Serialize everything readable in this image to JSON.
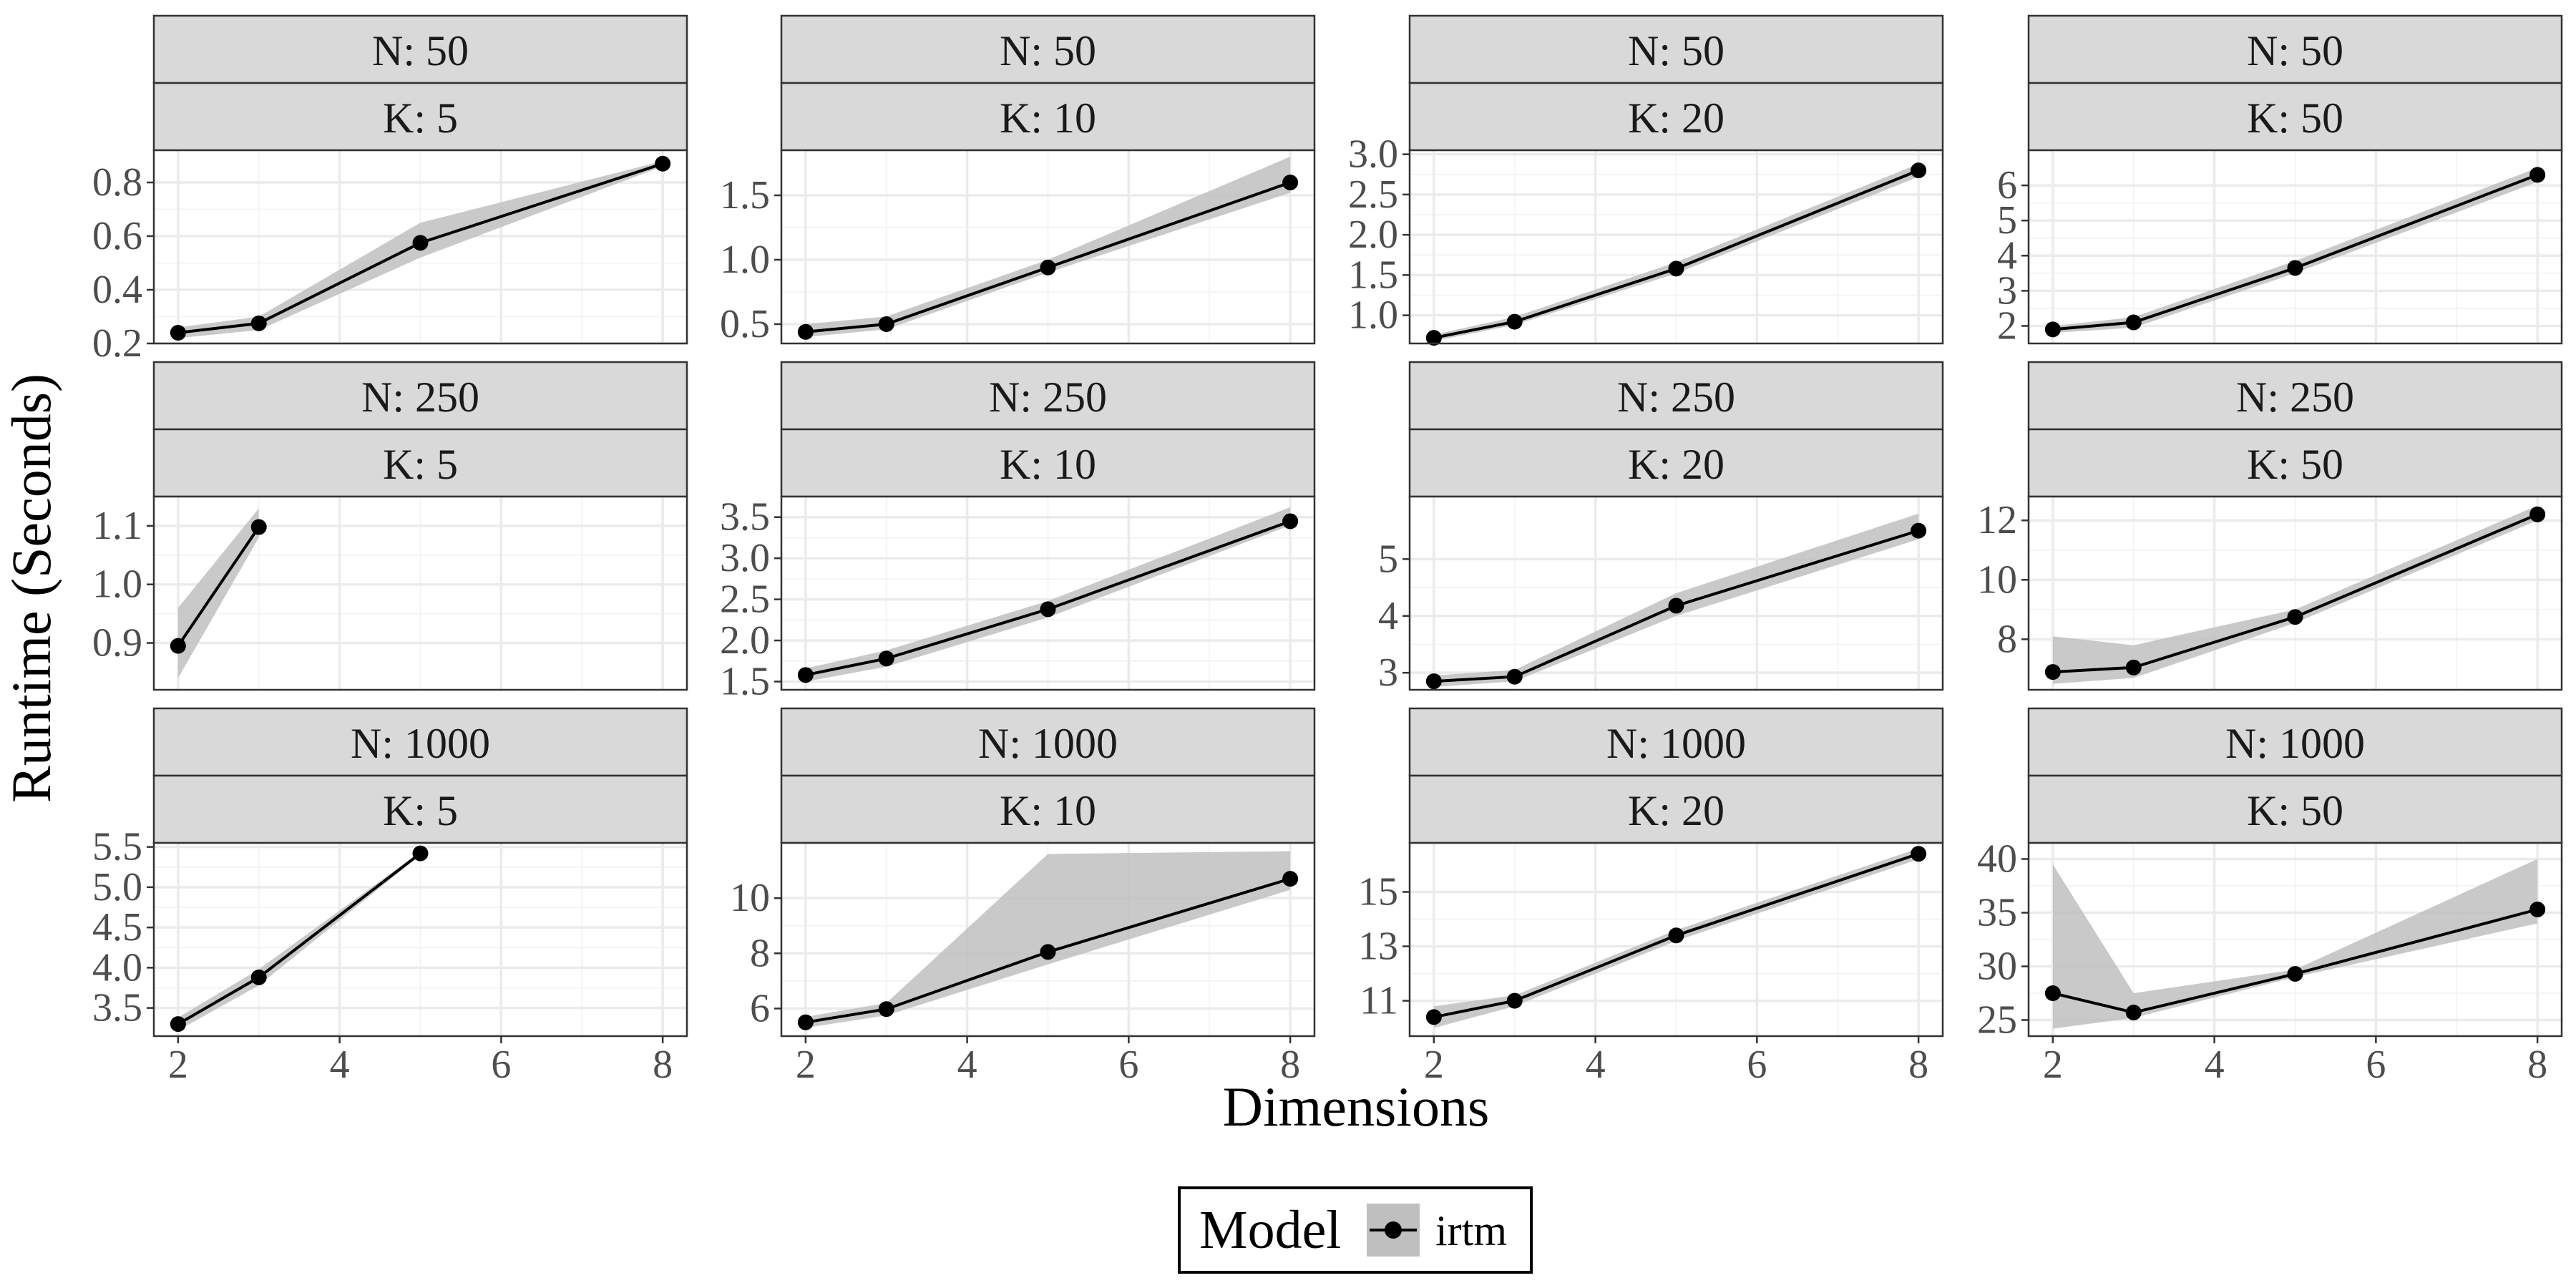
{
  "figure": {
    "ylabel": "Runtime (Seconds)",
    "xlabel": "Dimensions",
    "legend": {
      "title": "Model",
      "position": "bottom",
      "items": [
        "irtm"
      ]
    }
  },
  "colors": {
    "line": "#000000",
    "point": "#000000",
    "ribbon": "#bfbfbf",
    "strip_fill": "#d9d9d9",
    "strip_border": "#333333",
    "panel_border": "#333333",
    "grid_major": "#ebebeb",
    "grid_minor": "#f4f4f4",
    "tick_text": "#4d4d4d"
  },
  "chart_data": {
    "type": "line",
    "grid": true,
    "facet_rows": [
      "N: 50",
      "N: 250",
      "N: 1000"
    ],
    "facet_cols": [
      "K: 5",
      "K: 10",
      "K: 20",
      "K: 50"
    ],
    "xlim": [
      1.7,
      8.3
    ],
    "xticks": [
      2,
      4,
      6,
      8
    ],
    "xtick_labels": [
      "2",
      "4",
      "6",
      "8"
    ],
    "series_name": "irtm",
    "panels": [
      {
        "n": "N: 50",
        "k": "K: 5",
        "ylim": [
          0.2,
          0.92
        ],
        "yticks": [
          0.2,
          0.4,
          0.6,
          0.8
        ],
        "ytick_labels": [
          "0.2",
          "0.4",
          "0.6",
          "0.8"
        ],
        "x": [
          2,
          3,
          5,
          8
        ],
        "y": [
          0.24,
          0.275,
          0.575,
          0.87
        ],
        "lower": [
          0.22,
          0.25,
          0.52,
          0.86
        ],
        "upper": [
          0.26,
          0.3,
          0.65,
          0.88
        ]
      },
      {
        "n": "N: 50",
        "k": "K: 10",
        "ylim": [
          0.35,
          1.85
        ],
        "yticks": [
          0.5,
          1.0,
          1.5
        ],
        "ytick_labels": [
          "0.5",
          "1.0",
          "1.5"
        ],
        "x": [
          2,
          3,
          5,
          8
        ],
        "y": [
          0.44,
          0.5,
          0.94,
          1.6
        ],
        "lower": [
          0.4,
          0.46,
          0.9,
          1.52
        ],
        "upper": [
          0.5,
          0.56,
          1.0,
          1.8
        ]
      },
      {
        "n": "N: 50",
        "k": "K: 20",
        "ylim": [
          0.65,
          3.05
        ],
        "yticks": [
          1.0,
          1.5,
          2.0,
          2.5,
          3.0
        ],
        "ytick_labels": [
          "1.0",
          "1.5",
          "2.0",
          "2.5",
          "3.0"
        ],
        "x": [
          2,
          3,
          5,
          8
        ],
        "y": [
          0.72,
          0.92,
          1.58,
          2.8
        ],
        "lower": [
          0.68,
          0.88,
          1.52,
          2.72
        ],
        "upper": [
          0.76,
          0.98,
          1.66,
          2.88
        ]
      },
      {
        "n": "N: 50",
        "k": "K: 50",
        "ylim": [
          1.5,
          7.0
        ],
        "yticks": [
          2,
          3,
          4,
          5,
          6
        ],
        "ytick_labels": [
          "2",
          "3",
          "4",
          "5",
          "6"
        ],
        "x": [
          2,
          3,
          5,
          8
        ],
        "y": [
          1.9,
          2.1,
          3.65,
          6.3
        ],
        "lower": [
          1.8,
          1.95,
          3.5,
          6.1
        ],
        "upper": [
          2.0,
          2.25,
          3.85,
          6.5
        ]
      },
      {
        "n": "N: 250",
        "k": "K: 5",
        "ylim": [
          0.82,
          1.15
        ],
        "yticks": [
          0.9,
          1.0,
          1.1
        ],
        "ytick_labels": [
          "0.9",
          "1.0",
          "1.1"
        ],
        "x": [
          2,
          3
        ],
        "y": [
          0.895,
          1.098
        ],
        "lower": [
          0.84,
          1.08
        ],
        "upper": [
          0.96,
          1.13
        ]
      },
      {
        "n": "N: 250",
        "k": "K: 10",
        "ylim": [
          1.4,
          3.75
        ],
        "yticks": [
          1.5,
          2.0,
          2.5,
          3.0,
          3.5
        ],
        "ytick_labels": [
          "1.5",
          "2.0",
          "2.5",
          "3.0",
          "3.5"
        ],
        "x": [
          2,
          3,
          5,
          8
        ],
        "y": [
          1.58,
          1.78,
          2.38,
          3.45
        ],
        "lower": [
          1.5,
          1.68,
          2.28,
          3.4
        ],
        "upper": [
          1.66,
          1.88,
          2.48,
          3.62
        ]
      },
      {
        "n": "N: 250",
        "k": "K: 20",
        "ylim": [
          2.7,
          6.1
        ],
        "yticks": [
          3,
          4,
          5
        ],
        "ytick_labels": [
          "3",
          "4",
          "5"
        ],
        "x": [
          2,
          3,
          5,
          8
        ],
        "y": [
          2.85,
          2.93,
          4.18,
          5.5
        ],
        "lower": [
          2.75,
          2.85,
          4.0,
          5.35
        ],
        "upper": [
          2.95,
          3.05,
          4.4,
          5.8
        ]
      },
      {
        "n": "N: 250",
        "k": "K: 50",
        "ylim": [
          6.3,
          12.8
        ],
        "yticks": [
          8,
          10,
          12
        ],
        "ytick_labels": [
          "8",
          "10",
          "12"
        ],
        "x": [
          2,
          3,
          5,
          8
        ],
        "y": [
          6.9,
          7.05,
          8.75,
          12.2
        ],
        "lower": [
          6.5,
          6.7,
          8.55,
          12.0
        ],
        "upper": [
          8.1,
          7.8,
          9.0,
          12.5
        ]
      },
      {
        "n": "N: 1000",
        "k": "K: 5",
        "ylim": [
          3.15,
          5.55
        ],
        "yticks": [
          3.5,
          4.0,
          4.5,
          5.0,
          5.5
        ],
        "ytick_labels": [
          "3.5",
          "4.0",
          "4.5",
          "5.0",
          "5.5"
        ],
        "x": [
          2,
          3,
          5
        ],
        "y": [
          3.3,
          3.88,
          5.42
        ],
        "lower": [
          3.22,
          3.78,
          5.4
        ],
        "upper": [
          3.38,
          3.98,
          5.44
        ]
      },
      {
        "n": "N: 1000",
        "k": "K: 10",
        "ylim": [
          5.0,
          12.0
        ],
        "yticks": [
          6,
          8,
          10
        ],
        "ytick_labels": [
          "6",
          "8",
          "10"
        ],
        "x": [
          2,
          3,
          5,
          8
        ],
        "y": [
          5.5,
          5.98,
          8.05,
          10.7
        ],
        "lower": [
          5.3,
          5.75,
          7.6,
          10.3
        ],
        "upper": [
          5.7,
          6.2,
          11.6,
          11.7
        ]
      },
      {
        "n": "N: 1000",
        "k": "K: 20",
        "ylim": [
          9.7,
          16.8
        ],
        "yticks": [
          11,
          13,
          15
        ],
        "ytick_labels": [
          "11",
          "13",
          "15"
        ],
        "x": [
          2,
          3,
          5,
          8
        ],
        "y": [
          10.4,
          11.0,
          13.4,
          16.4
        ],
        "lower": [
          10.0,
          10.8,
          13.2,
          16.2
        ],
        "upper": [
          10.8,
          11.2,
          13.6,
          16.6
        ]
      },
      {
        "n": "N: 1000",
        "k": "K: 50",
        "ylim": [
          23.5,
          41.5
        ],
        "yticks": [
          25,
          30,
          35,
          40
        ],
        "ytick_labels": [
          "25",
          "30",
          "35",
          "40"
        ],
        "x": [
          2,
          3,
          5,
          8
        ],
        "y": [
          27.5,
          25.7,
          29.3,
          35.3
        ],
        "lower": [
          24.2,
          25.2,
          29.0,
          34.0
        ],
        "upper": [
          39.5,
          27.5,
          29.7,
          40.0
        ]
      }
    ]
  }
}
